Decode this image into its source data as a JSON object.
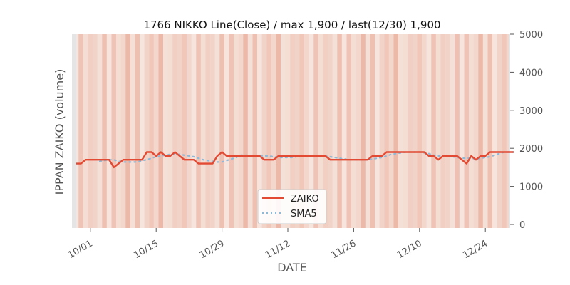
{
  "chart_data": {
    "type": "line",
    "title": "1766 NIKKO Line(Close) / max 1,900 / last(12/30) 1,900",
    "xlabel": "DATE",
    "ylabel": "IPPAN ZAIKO (volume)",
    "ylim": [
      0,
      5000
    ],
    "yticks": [
      0,
      1000,
      2000,
      3000,
      4000,
      5000
    ],
    "ytick_labels": [
      "0",
      "1000",
      "2000",
      "3000",
      "4000",
      "5000"
    ],
    "yaxis_side": "right",
    "xtick_labels": [
      "10/01",
      "10/15",
      "10/29",
      "11/12",
      "11/26",
      "12/10",
      "12/24"
    ],
    "xtick_dates": [
      "10-01",
      "10-15",
      "10-29",
      "11-12",
      "11-26",
      "12-10",
      "12-24"
    ],
    "x_start": "09-28",
    "x_end": "12-30",
    "legend_position": "lower center",
    "background_shading": "daily vertical bands in shades of pink/salmon",
    "colors": {
      "zaiko": "#e24a33",
      "sma5": "#8eb9d8",
      "frame_bg": "#e5e5e5"
    },
    "series": [
      {
        "name": "ZAIKO",
        "style": "solid",
        "x": [
          "09-28",
          "09-29",
          "09-30",
          "10-01",
          "10-02",
          "10-03",
          "10-04",
          "10-05",
          "10-06",
          "10-07",
          "10-08",
          "10-09",
          "10-10",
          "10-11",
          "10-12",
          "10-13",
          "10-14",
          "10-15",
          "10-16",
          "10-17",
          "10-18",
          "10-19",
          "10-20",
          "10-21",
          "10-22",
          "10-23",
          "10-24",
          "10-25",
          "10-26",
          "10-27",
          "10-28",
          "10-29",
          "10-30",
          "10-31",
          "11-01",
          "11-02",
          "11-03",
          "11-04",
          "11-05",
          "11-06",
          "11-07",
          "11-08",
          "11-09",
          "11-10",
          "11-11",
          "11-12",
          "11-13",
          "11-14",
          "11-15",
          "11-16",
          "11-17",
          "11-18",
          "11-19",
          "11-20",
          "11-21",
          "11-22",
          "11-23",
          "11-24",
          "11-25",
          "11-26",
          "11-27",
          "11-28",
          "11-29",
          "11-30",
          "12-01",
          "12-02",
          "12-03",
          "12-04",
          "12-05",
          "12-06",
          "12-07",
          "12-08",
          "12-09",
          "12-10",
          "12-11",
          "12-12",
          "12-13",
          "12-14",
          "12-15",
          "12-16",
          "12-17",
          "12-18",
          "12-19",
          "12-20",
          "12-21",
          "12-22",
          "12-23",
          "12-24",
          "12-25",
          "12-26",
          "12-27",
          "12-28",
          "12-29",
          "12-30"
        ],
        "values": [
          1600,
          1600,
          1700,
          1700,
          1700,
          1700,
          1700,
          1700,
          1500,
          1600,
          1700,
          1700,
          1700,
          1700,
          1700,
          1900,
          1900,
          1800,
          1900,
          1800,
          1800,
          1900,
          1800,
          1700,
          1700,
          1700,
          1600,
          1600,
          1600,
          1600,
          1800,
          1900,
          1800,
          1800,
          1800,
          1800,
          1800,
          1800,
          1800,
          1800,
          1700,
          1700,
          1700,
          1800,
          1800,
          1800,
          1800,
          1800,
          1800,
          1800,
          1800,
          1800,
          1800,
          1800,
          1700,
          1700,
          1700,
          1700,
          1700,
          1700,
          1700,
          1700,
          1700,
          1800,
          1800,
          1800,
          1900,
          1900,
          1900,
          1900,
          1900,
          1900,
          1900,
          1900,
          1900,
          1800,
          1800,
          1700,
          1800,
          1800,
          1800,
          1800,
          1700,
          1600,
          1800,
          1700,
          1800,
          1800,
          1900,
          1900,
          1900,
          1900,
          1900,
          1900
        ]
      },
      {
        "name": "SMA5",
        "style": "dotted",
        "x": [
          "10-03",
          "10-04",
          "10-05",
          "10-06",
          "10-07",
          "10-08",
          "10-09",
          "10-10",
          "10-11",
          "10-12",
          "10-13",
          "10-14",
          "10-15",
          "10-16",
          "10-17",
          "10-18",
          "10-19",
          "10-20",
          "10-21",
          "10-22",
          "10-23",
          "10-24",
          "10-25",
          "10-26",
          "10-27",
          "10-28",
          "10-29",
          "10-30",
          "10-31",
          "11-01",
          "11-02",
          "11-03",
          "11-04",
          "11-05",
          "11-06",
          "11-07",
          "11-08",
          "11-09",
          "11-10",
          "11-11",
          "11-12",
          "11-13",
          "11-14",
          "11-15",
          "11-16",
          "11-17",
          "11-18",
          "11-19",
          "11-20",
          "11-21",
          "11-22",
          "11-23",
          "11-24",
          "11-25",
          "11-26",
          "11-27",
          "11-28",
          "11-29",
          "11-30",
          "12-01",
          "12-02",
          "12-03",
          "12-04",
          "12-05",
          "12-06",
          "12-07",
          "12-08",
          "12-09",
          "12-10",
          "12-11",
          "12-12",
          "12-13",
          "12-14",
          "12-15",
          "12-16",
          "12-17",
          "12-18",
          "12-19",
          "12-20",
          "12-21",
          "12-22",
          "12-23",
          "12-24",
          "12-25",
          "12-26",
          "12-27",
          "12-28",
          "12-29",
          "12-30"
        ],
        "values": [
          1660,
          1680,
          1700,
          1700,
          1660,
          1640,
          1640,
          1640,
          1640,
          1680,
          1700,
          1740,
          1780,
          1800,
          1820,
          1840,
          1840,
          1840,
          1820,
          1800,
          1780,
          1740,
          1700,
          1680,
          1660,
          1640,
          1640,
          1680,
          1720,
          1760,
          1820,
          1820,
          1800,
          1800,
          1800,
          1800,
          1800,
          1780,
          1760,
          1760,
          1760,
          1760,
          1780,
          1800,
          1800,
          1800,
          1800,
          1800,
          1800,
          1780,
          1760,
          1740,
          1720,
          1700,
          1700,
          1700,
          1700,
          1700,
          1720,
          1740,
          1760,
          1800,
          1840,
          1860,
          1880,
          1900,
          1900,
          1900,
          1900,
          1880,
          1860,
          1820,
          1800,
          1780,
          1780,
          1780,
          1760,
          1740,
          1740,
          1740,
          1720,
          1740,
          1760,
          1780,
          1820,
          1860,
          1900,
          1900,
          1900
        ]
      }
    ]
  }
}
